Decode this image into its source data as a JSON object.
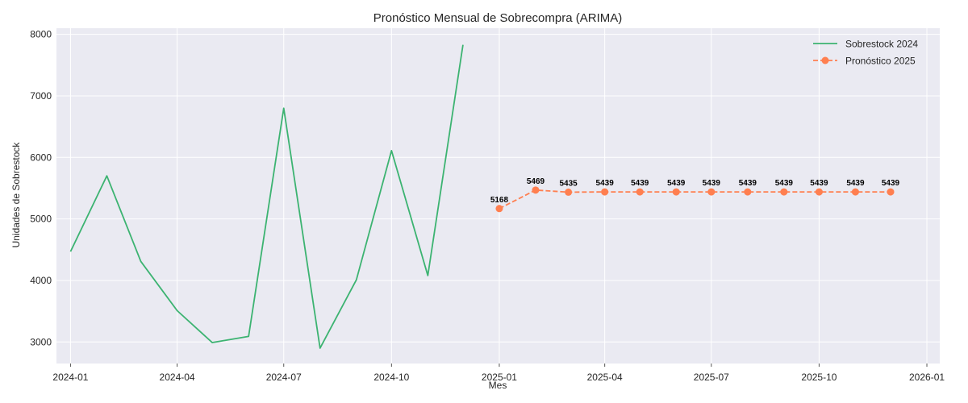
{
  "chart_data": {
    "type": "line",
    "title": "Pronóstico Mensual de Sobrecompra (ARIMA)",
    "xlabel": "Mes",
    "ylabel": "Unidades de Sobrestock",
    "ylim": [
      2650,
      8100
    ],
    "xlim": [
      "2023-12-20",
      "2026-01-12"
    ],
    "x_ticks": [
      "2024-01",
      "2024-04",
      "2024-07",
      "2024-10",
      "2025-01",
      "2025-04",
      "2025-07",
      "2025-10",
      "2026-01"
    ],
    "y_ticks": [
      3000,
      4000,
      5000,
      6000,
      7000,
      8000
    ],
    "grid": true,
    "legend_position": "top-right",
    "series": [
      {
        "name": "Sobrestock 2024",
        "color": "#3cb371",
        "style": "solid",
        "markers": false,
        "x": [
          "2024-01",
          "2024-02",
          "2024-03",
          "2024-04",
          "2024-05",
          "2024-06",
          "2024-07",
          "2024-08",
          "2024-09",
          "2024-10",
          "2024-11",
          "2024-12"
        ],
        "values": [
          4470,
          5700,
          4310,
          3510,
          2990,
          3090,
          6800,
          2900,
          4010,
          6110,
          4080,
          7830
        ]
      },
      {
        "name": "Pronóstico 2025",
        "color": "#ff7f50",
        "style": "dashed",
        "markers": true,
        "data_labels": true,
        "x": [
          "2025-01",
          "2025-02",
          "2025-03",
          "2025-04",
          "2025-05",
          "2025-06",
          "2025-07",
          "2025-08",
          "2025-09",
          "2025-10",
          "2025-11",
          "2025-12"
        ],
        "values": [
          5168,
          5469,
          5435,
          5439,
          5439,
          5439,
          5439,
          5439,
          5439,
          5439,
          5439,
          5439
        ],
        "labels": [
          "5168",
          "5469",
          "5435",
          "5439",
          "5439",
          "5439",
          "5439",
          "5439",
          "5439",
          "5439",
          "5439",
          "5439"
        ]
      }
    ]
  }
}
